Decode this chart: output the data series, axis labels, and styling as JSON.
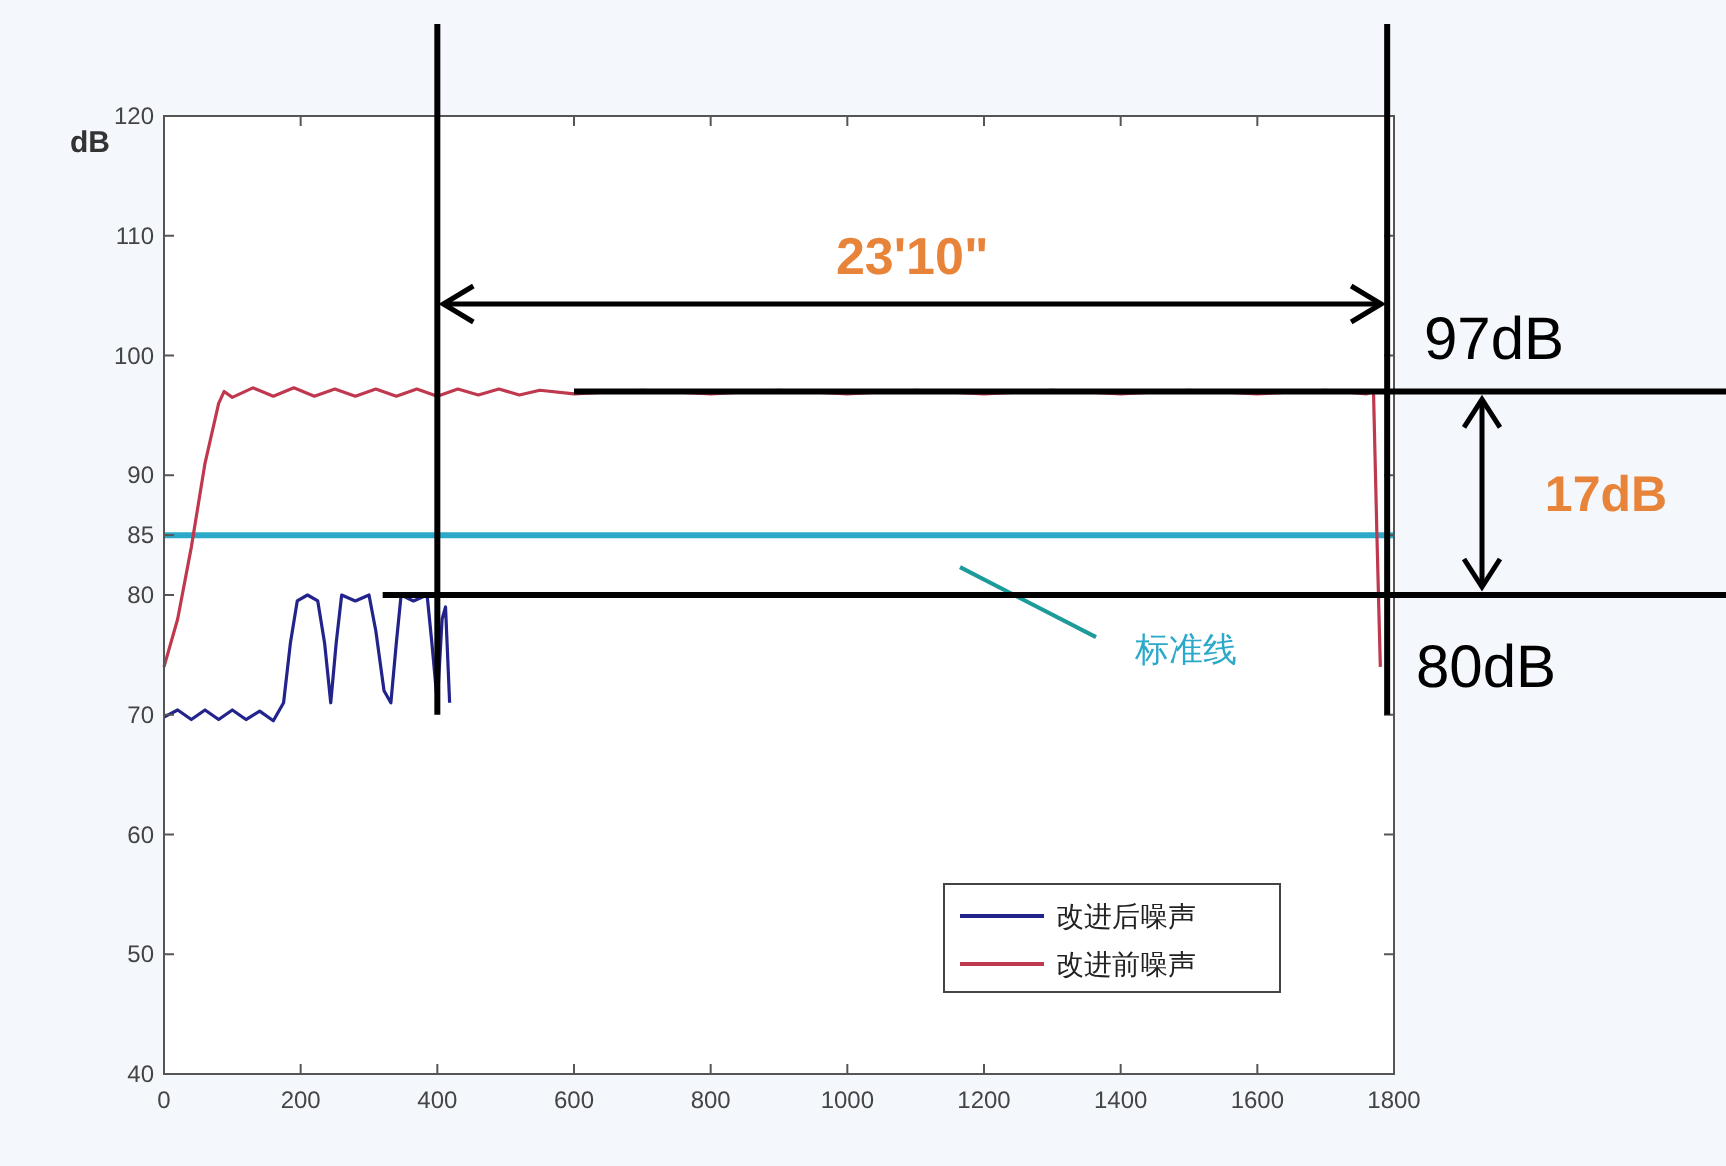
{
  "chart_data": {
    "type": "line",
    "ylabel": "dB",
    "xlim": [
      0,
      1800
    ],
    "xticks": [
      0,
      200,
      400,
      600,
      800,
      1000,
      1200,
      1400,
      1600,
      1800
    ],
    "ylim": [
      40,
      120
    ],
    "yticks": [
      40,
      50,
      60,
      70,
      80,
      85,
      90,
      100,
      110,
      120
    ],
    "grid": false,
    "legend": "bottom right",
    "marker": "none",
    "line_style": "solid",
    "series": [
      {
        "name": "改进后噪声",
        "color": "#23238c",
        "x": [
          0,
          20,
          40,
          60,
          80,
          100,
          120,
          140,
          160,
          175,
          185,
          195,
          210,
          225,
          235,
          244,
          252,
          260,
          280,
          300,
          310,
          322,
          332,
          340,
          347,
          365,
          385,
          392,
          400,
          407,
          412,
          418
        ],
        "values": [
          69.8,
          70.4,
          69.6,
          70.4,
          69.6,
          70.4,
          69.6,
          70.3,
          69.5,
          71,
          76,
          79.5,
          80,
          79.5,
          76,
          71,
          76,
          80,
          79.5,
          80,
          77,
          72,
          71,
          76,
          80,
          79.5,
          80,
          76,
          71,
          78,
          79,
          71
        ]
      },
      {
        "name": "改进前噪声",
        "color": "#c0384e",
        "x": [
          0,
          20,
          40,
          60,
          80,
          88,
          100,
          130,
          160,
          190,
          220,
          250,
          280,
          310,
          340,
          370,
          400,
          430,
          460,
          490,
          520,
          550,
          600,
          700,
          800,
          900,
          1000,
          1100,
          1200,
          1300,
          1400,
          1500,
          1600,
          1700,
          1760,
          1770,
          1775,
          1780
        ],
        "values": [
          74,
          78,
          84,
          91,
          96,
          97,
          96.5,
          97.3,
          96.6,
          97.3,
          96.6,
          97.2,
          96.6,
          97.2,
          96.6,
          97.2,
          96.6,
          97.2,
          96.7,
          97.2,
          96.7,
          97.1,
          96.8,
          97.1,
          96.8,
          97.1,
          96.8,
          97.1,
          96.8,
          97.1,
          96.8,
          97.1,
          96.8,
          97.1,
          96.8,
          97,
          85,
          74
        ]
      }
    ],
    "ref_lines": [
      {
        "axis": "y",
        "value": 85,
        "label": "标准线",
        "color": "#2ba9c9"
      },
      {
        "axis": "y",
        "value": 97,
        "label": "97dB",
        "color": "#000000"
      },
      {
        "axis": "y",
        "value": 80,
        "label": "80dB",
        "color": "#000000"
      },
      {
        "axis": "x",
        "value": 400,
        "color": "#000000"
      },
      {
        "axis": "x",
        "value": 1790,
        "color": "#000000"
      }
    ],
    "annotations": [
      "23'10\"",
      "17dB"
    ]
  }
}
